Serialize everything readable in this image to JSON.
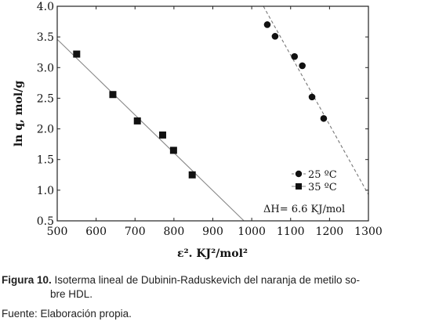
{
  "chart_data": {
    "type": "scatter",
    "title": "",
    "xlabel": "ε². KJ²/mol²",
    "ylabel": "ln q, mol/g",
    "xlim": [
      500,
      1300
    ],
    "ylim": [
      0.5,
      4.0
    ],
    "x_ticks": [
      500,
      600,
      700,
      800,
      900,
      1000,
      1100,
      1200,
      1300
    ],
    "y_ticks": [
      0.5,
      1.0,
      1.5,
      2.0,
      2.5,
      3.0,
      3.5,
      4.0
    ],
    "x_tick_labels": [
      "500",
      "600",
      "700",
      "800",
      "900",
      "1000",
      "1100",
      "1200",
      "1300"
    ],
    "y_tick_labels": [
      "0.5",
      "1.0",
      "1.5",
      "2.0",
      "2.5",
      "3.0",
      "3.5",
      "4.0"
    ],
    "grid": false,
    "legend_position": "bottom-right",
    "series": [
      {
        "name": "25 ºC",
        "marker": "circle",
        "color": "#111111",
        "x": [
          1040,
          1060,
          1110,
          1130,
          1155,
          1185
        ],
        "y": [
          3.7,
          3.51,
          3.18,
          3.03,
          2.52,
          2.17
        ],
        "fit_line": {
          "style": "dashed",
          "color": "#777777",
          "x": [
            1030,
            1300
          ],
          "y": [
            4.0,
            0.93
          ]
        }
      },
      {
        "name": "35 ºC",
        "marker": "square",
        "color": "#111111",
        "x": [
          550,
          643,
          706,
          771,
          799,
          847
        ],
        "y": [
          3.22,
          2.56,
          2.13,
          1.9,
          1.65,
          1.25
        ],
        "fit_line": {
          "style": "solid",
          "color": "#888888",
          "x": [
            500,
            980
          ],
          "y": [
            3.46,
            0.5
          ]
        }
      }
    ],
    "annotations": [
      "ΔH= 6.6 KJ/mol"
    ]
  },
  "caption": {
    "label": "Figura 10.",
    "text_line1": " Isoterma lineal de Dubinin-Raduskevich del naranja de metilo so-",
    "text_line2": "bre HDL."
  },
  "source": "Fuente: Elaboración propia."
}
